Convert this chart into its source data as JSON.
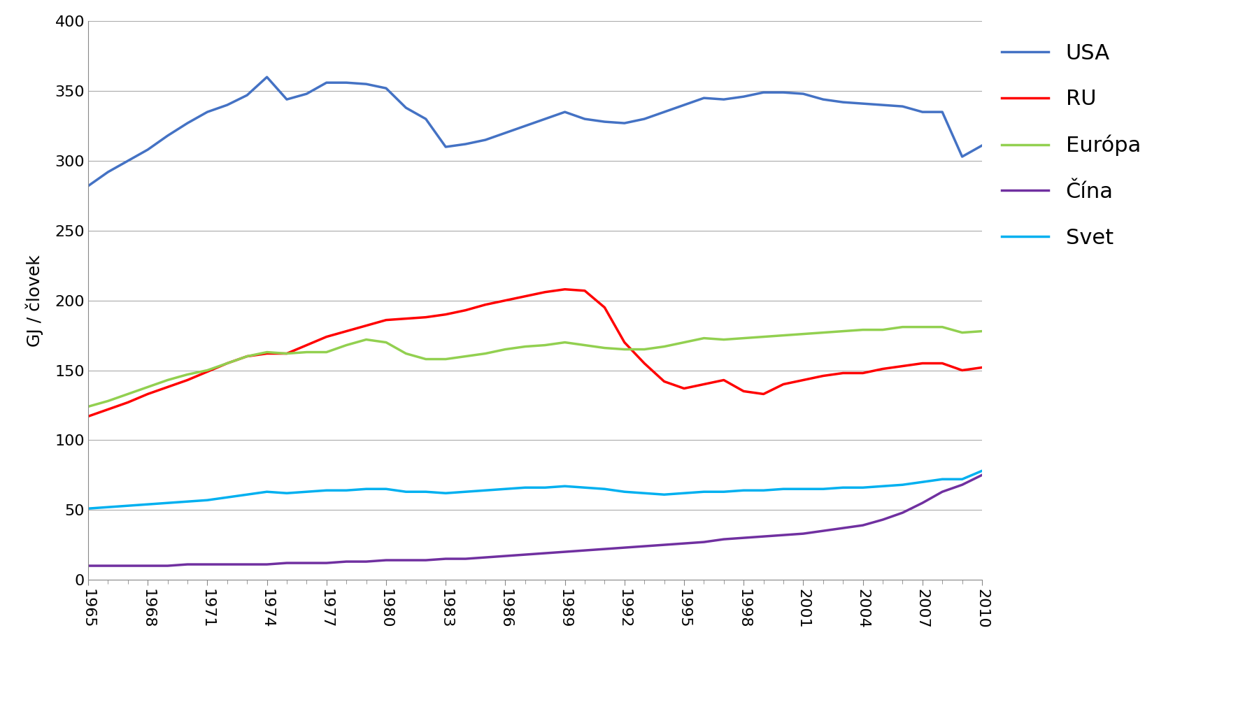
{
  "years": [
    1965,
    1966,
    1967,
    1968,
    1969,
    1970,
    1971,
    1972,
    1973,
    1974,
    1975,
    1976,
    1977,
    1978,
    1979,
    1980,
    1981,
    1982,
    1983,
    1984,
    1985,
    1986,
    1987,
    1988,
    1989,
    1990,
    1991,
    1992,
    1993,
    1994,
    1995,
    1996,
    1997,
    1998,
    1999,
    2000,
    2001,
    2002,
    2003,
    2004,
    2005,
    2006,
    2007,
    2008,
    2009,
    2010
  ],
  "USA": [
    282,
    292,
    300,
    308,
    318,
    327,
    335,
    340,
    347,
    360,
    344,
    348,
    356,
    356,
    355,
    352,
    338,
    330,
    310,
    312,
    315,
    320,
    325,
    330,
    335,
    330,
    328,
    327,
    330,
    335,
    340,
    345,
    344,
    346,
    349,
    349,
    348,
    344,
    342,
    341,
    340,
    339,
    335,
    335,
    303,
    311
  ],
  "RU": [
    117,
    122,
    127,
    133,
    138,
    143,
    149,
    155,
    160,
    162,
    162,
    168,
    174,
    178,
    182,
    186,
    187,
    188,
    190,
    193,
    197,
    200,
    203,
    206,
    208,
    207,
    195,
    170,
    155,
    142,
    137,
    140,
    143,
    135,
    133,
    140,
    143,
    146,
    148,
    148,
    151,
    153,
    155,
    155,
    150,
    152
  ],
  "Europa": [
    124,
    128,
    133,
    138,
    143,
    147,
    150,
    155,
    160,
    163,
    162,
    163,
    163,
    168,
    172,
    170,
    162,
    158,
    158,
    160,
    162,
    165,
    167,
    168,
    170,
    168,
    166,
    165,
    165,
    167,
    170,
    173,
    172,
    173,
    174,
    175,
    176,
    177,
    178,
    179,
    179,
    181,
    181,
    181,
    177,
    178
  ],
  "Cina": [
    10,
    10,
    10,
    10,
    10,
    11,
    11,
    11,
    11,
    11,
    12,
    12,
    12,
    13,
    13,
    14,
    14,
    14,
    15,
    15,
    16,
    17,
    18,
    19,
    20,
    21,
    22,
    23,
    24,
    25,
    26,
    27,
    29,
    30,
    31,
    32,
    33,
    35,
    37,
    39,
    43,
    48,
    55,
    63,
    68,
    75
  ],
  "Svet": [
    51,
    52,
    53,
    54,
    55,
    56,
    57,
    59,
    61,
    63,
    62,
    63,
    64,
    64,
    65,
    65,
    63,
    63,
    62,
    63,
    64,
    65,
    66,
    66,
    67,
    66,
    65,
    63,
    62,
    61,
    62,
    63,
    63,
    64,
    64,
    65,
    65,
    65,
    66,
    66,
    67,
    68,
    70,
    72,
    72,
    78
  ],
  "colors": {
    "USA": "#4472C4",
    "RU": "#FF0000",
    "Europa": "#92D050",
    "Cina": "#7030A0",
    "Svet": "#00B0F0"
  },
  "labels": {
    "USA": "USA",
    "RU": "RU",
    "Europa": "Európa",
    "Cina": "Čína",
    "Svet": "Svet"
  },
  "ylabel": "GJ / človek",
  "ylim": [
    0,
    400
  ],
  "yticks": [
    0,
    50,
    100,
    150,
    200,
    250,
    300,
    350,
    400
  ],
  "xtick_years": [
    1965,
    1968,
    1971,
    1974,
    1977,
    1980,
    1983,
    1986,
    1989,
    1992,
    1995,
    1998,
    2001,
    2004,
    2007,
    2010
  ],
  "background_color": "#ffffff",
  "grid_color": "#aaaaaa",
  "linewidth": 2.5,
  "legend_fontsize": 22,
  "tick_fontsize": 16,
  "ylabel_fontsize": 18
}
